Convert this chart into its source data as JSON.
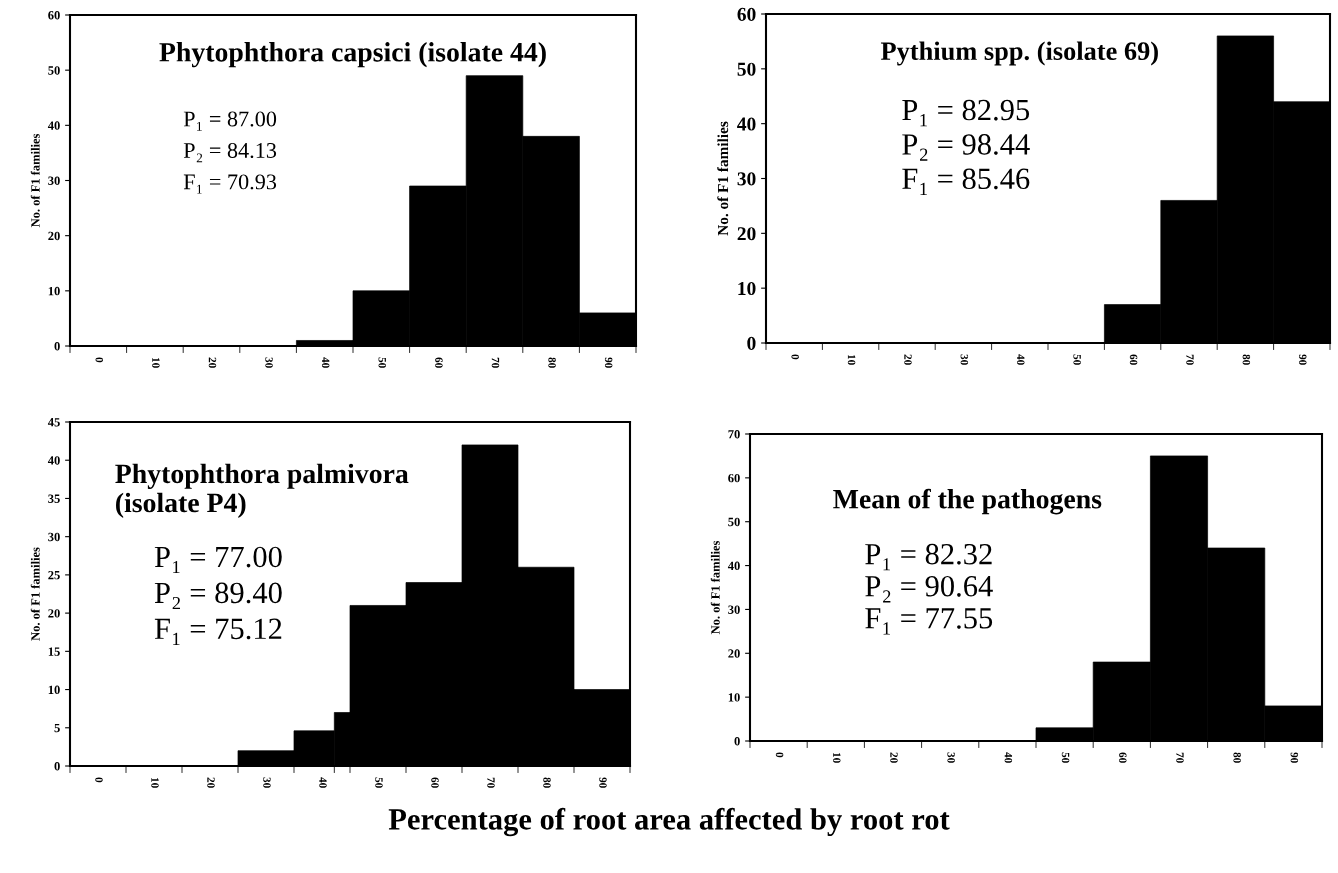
{
  "chart_data": [
    {
      "type": "histogram",
      "title": "Phytophthora capsici (isolate 44)",
      "ylabel": "No. of F1 families",
      "bins": [
        -5,
        5,
        15,
        25,
        35,
        45,
        55,
        65,
        75,
        85,
        95
      ],
      "values": [
        0,
        0,
        0,
        0,
        1,
        10,
        29,
        49,
        38,
        6
      ],
      "color": "#000000",
      "xlim": [
        -5,
        95
      ],
      "xticks": [
        0,
        10,
        20,
        30,
        40,
        50,
        60,
        70,
        80,
        90
      ],
      "ylim": [
        0,
        60
      ],
      "yticks": [
        0,
        10,
        20,
        30,
        40,
        50,
        60
      ],
      "grid": false,
      "legend": false,
      "annotations": [
        "P₁ = 87.00",
        "P₂ = 84.13",
        "F₁ = 70.93"
      ]
    },
    {
      "type": "histogram",
      "title": "Pythium spp. (isolate 69)",
      "ylabel": "No. of F1 families",
      "bins": [
        -5,
        5,
        15,
        25,
        35,
        45,
        55,
        65,
        75,
        85,
        95
      ],
      "values": [
        0,
        0,
        0,
        0,
        0,
        0,
        7,
        26,
        56,
        44
      ],
      "color": "#000000",
      "xlim": [
        -5,
        95
      ],
      "xticks": [
        0,
        10,
        20,
        30,
        40,
        50,
        60,
        70,
        80,
        90
      ],
      "ylim": [
        0,
        60
      ],
      "yticks": [
        0,
        10,
        20,
        30,
        40,
        50,
        60
      ],
      "grid": false,
      "legend": false,
      "annotations": [
        "P₁ = 82.95",
        "P₂ = 98.44",
        "F₁ = 85.46"
      ]
    },
    {
      "type": "histogram",
      "title": "Phytophthora palmivora\n(isolate P4)",
      "ylabel": "No. of F1 families",
      "bins": [
        -5,
        5,
        15,
        25,
        35,
        42.2,
        45,
        55,
        65,
        75,
        85,
        95
      ],
      "values": [
        0,
        0,
        0,
        2,
        4.6,
        7,
        21,
        24,
        42,
        26,
        10
      ],
      "color": "#000000",
      "xlim": [
        -5,
        95
      ],
      "xticks": [
        0,
        10,
        20,
        30,
        40,
        50,
        60,
        70,
        80,
        90
      ],
      "ylim": [
        0,
        45
      ],
      "yticks": [
        0,
        5,
        10,
        15,
        20,
        25,
        30,
        35,
        40,
        45
      ],
      "grid": false,
      "legend": false,
      "annotations": [
        "P₁ = 77.00",
        "P₂ = 89.40",
        "F₁ = 75.12"
      ]
    },
    {
      "type": "histogram",
      "title": "Mean of the pathogens",
      "ylabel": "No. of F1 families",
      "bins": [
        -5,
        5,
        15,
        25,
        35,
        45,
        55,
        65,
        75,
        85,
        95
      ],
      "values": [
        0,
        0,
        0,
        0,
        0,
        3,
        18,
        65,
        44,
        8
      ],
      "color": "#000000",
      "xlim": [
        -5,
        95
      ],
      "xticks": [
        0,
        10,
        20,
        30,
        40,
        50,
        60,
        70,
        80,
        90
      ],
      "ylim": [
        0,
        70
      ],
      "yticks": [
        0,
        10,
        20,
        30,
        40,
        50,
        60,
        70
      ],
      "grid": false,
      "legend": false,
      "annotations": [
        "P₁ = 82.32",
        "P₂ = 90.64",
        "F₁ = 77.55",
        "Percentage of root area affected by root rot"
      ]
    }
  ]
}
